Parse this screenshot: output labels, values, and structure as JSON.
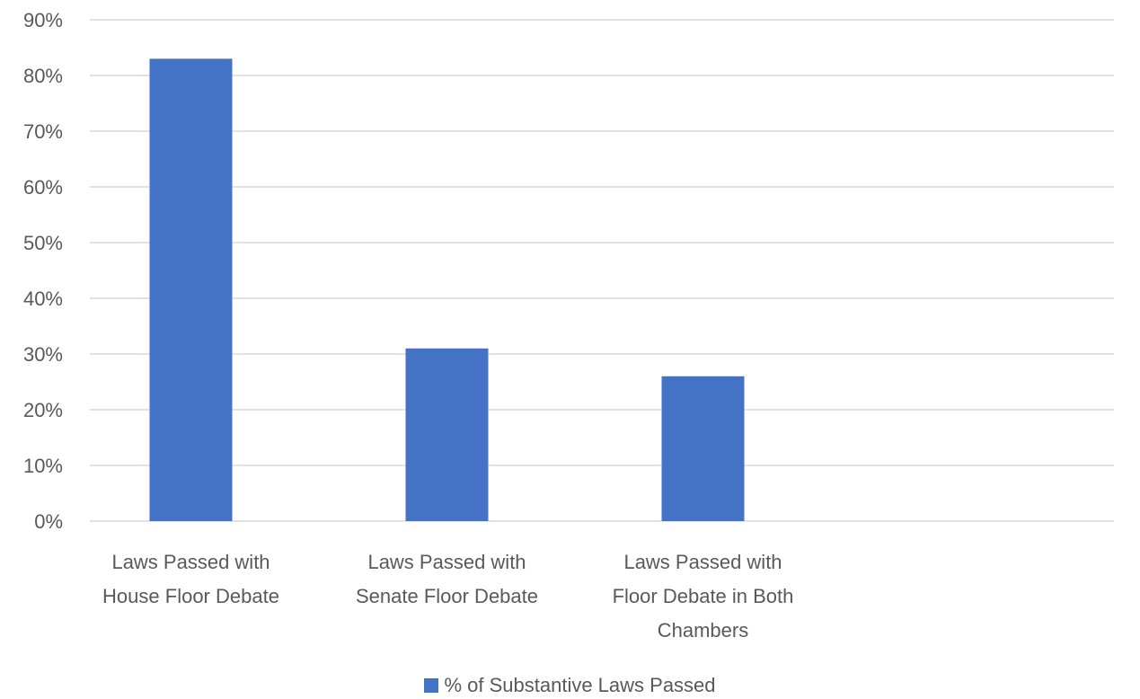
{
  "chart_data": {
    "type": "bar",
    "title": "",
    "xlabel": "",
    "ylabel": "",
    "categories": [
      [
        "Laws Passed with",
        "House Floor Debate"
      ],
      [
        "Laws Passed with",
        "Senate Floor Debate"
      ],
      [
        "Laws Passed with",
        "Floor Debate in Both",
        "Chambers"
      ]
    ],
    "series": [
      {
        "name": "% of Substantive Laws Passed",
        "values": [
          83,
          31,
          26
        ],
        "color": "#4472C4"
      }
    ],
    "ylim": [
      0,
      90
    ],
    "yticks": [
      "0%",
      "10%",
      "20%",
      "30%",
      "40%",
      "50%",
      "60%",
      "70%",
      "80%",
      "90%"
    ],
    "grid": true,
    "legend_position": "bottom"
  },
  "colors": {
    "gridline": "#D9D9D9",
    "text": "#595959"
  }
}
